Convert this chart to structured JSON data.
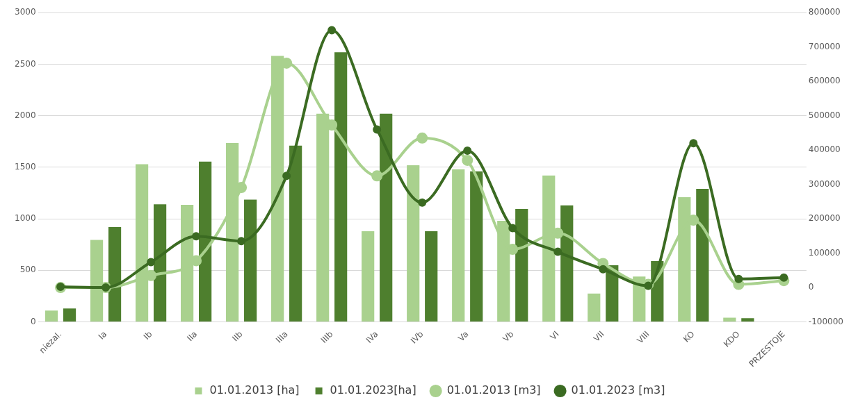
{
  "chart_data": {
    "type": "bar",
    "categories": [
      "niezal.",
      "Ia",
      "Ib",
      "IIa",
      "IIb",
      "IIIa",
      "IIIb",
      "IVa",
      "IVb",
      "Va",
      "Vb",
      "VI",
      "VII",
      "VIII",
      "KO",
      "KDO",
      "PRZESTOJE"
    ],
    "series": [
      {
        "name": "01.01.2013 [ha]",
        "color": "#a9d18e",
        "values": [
          110,
          795,
          1530,
          1135,
          1735,
          2580,
          2020,
          880,
          1520,
          1480,
          980,
          1420,
          275,
          440,
          1210,
          40,
          null
        ]
      },
      {
        "name": "01.01.2023[ha]",
        "color": "#4e7f2e",
        "values": [
          130,
          920,
          1140,
          1555,
          1185,
          1710,
          2615,
          2020,
          880,
          1460,
          1095,
          1130,
          550,
          590,
          1290,
          35,
          null
        ]
      },
      {
        "name": "01.01.2013 [m3]",
        "type": "line",
        "axis": "y2",
        "color": "#a9d18e",
        "values": [
          0,
          0,
          35000,
          78000,
          291000,
          653000,
          473000,
          325000,
          435000,
          370000,
          111000,
          158000,
          70000,
          9000,
          196000,
          9000,
          20000
        ]
      },
      {
        "name": "01.01.2023 [m3]",
        "type": "line",
        "axis": "y2",
        "color": "#3b6b22",
        "values": [
          2000,
          0,
          74000,
          149000,
          135000,
          325000,
          749000,
          460000,
          247000,
          398000,
          173000,
          104000,
          53000,
          5000,
          420000,
          25000,
          29000
        ]
      }
    ],
    "ylim": [
      0,
      3000
    ],
    "yticks": [
      0,
      500,
      1000,
      1500,
      2000,
      2500,
      3000
    ],
    "y2lim": [
      -100000,
      800000
    ],
    "y2ticks": [
      -100000,
      0,
      100000,
      200000,
      300000,
      400000,
      500000,
      600000,
      700000,
      800000
    ],
    "grid": "y",
    "legend": "bottom",
    "marker": "circle"
  }
}
